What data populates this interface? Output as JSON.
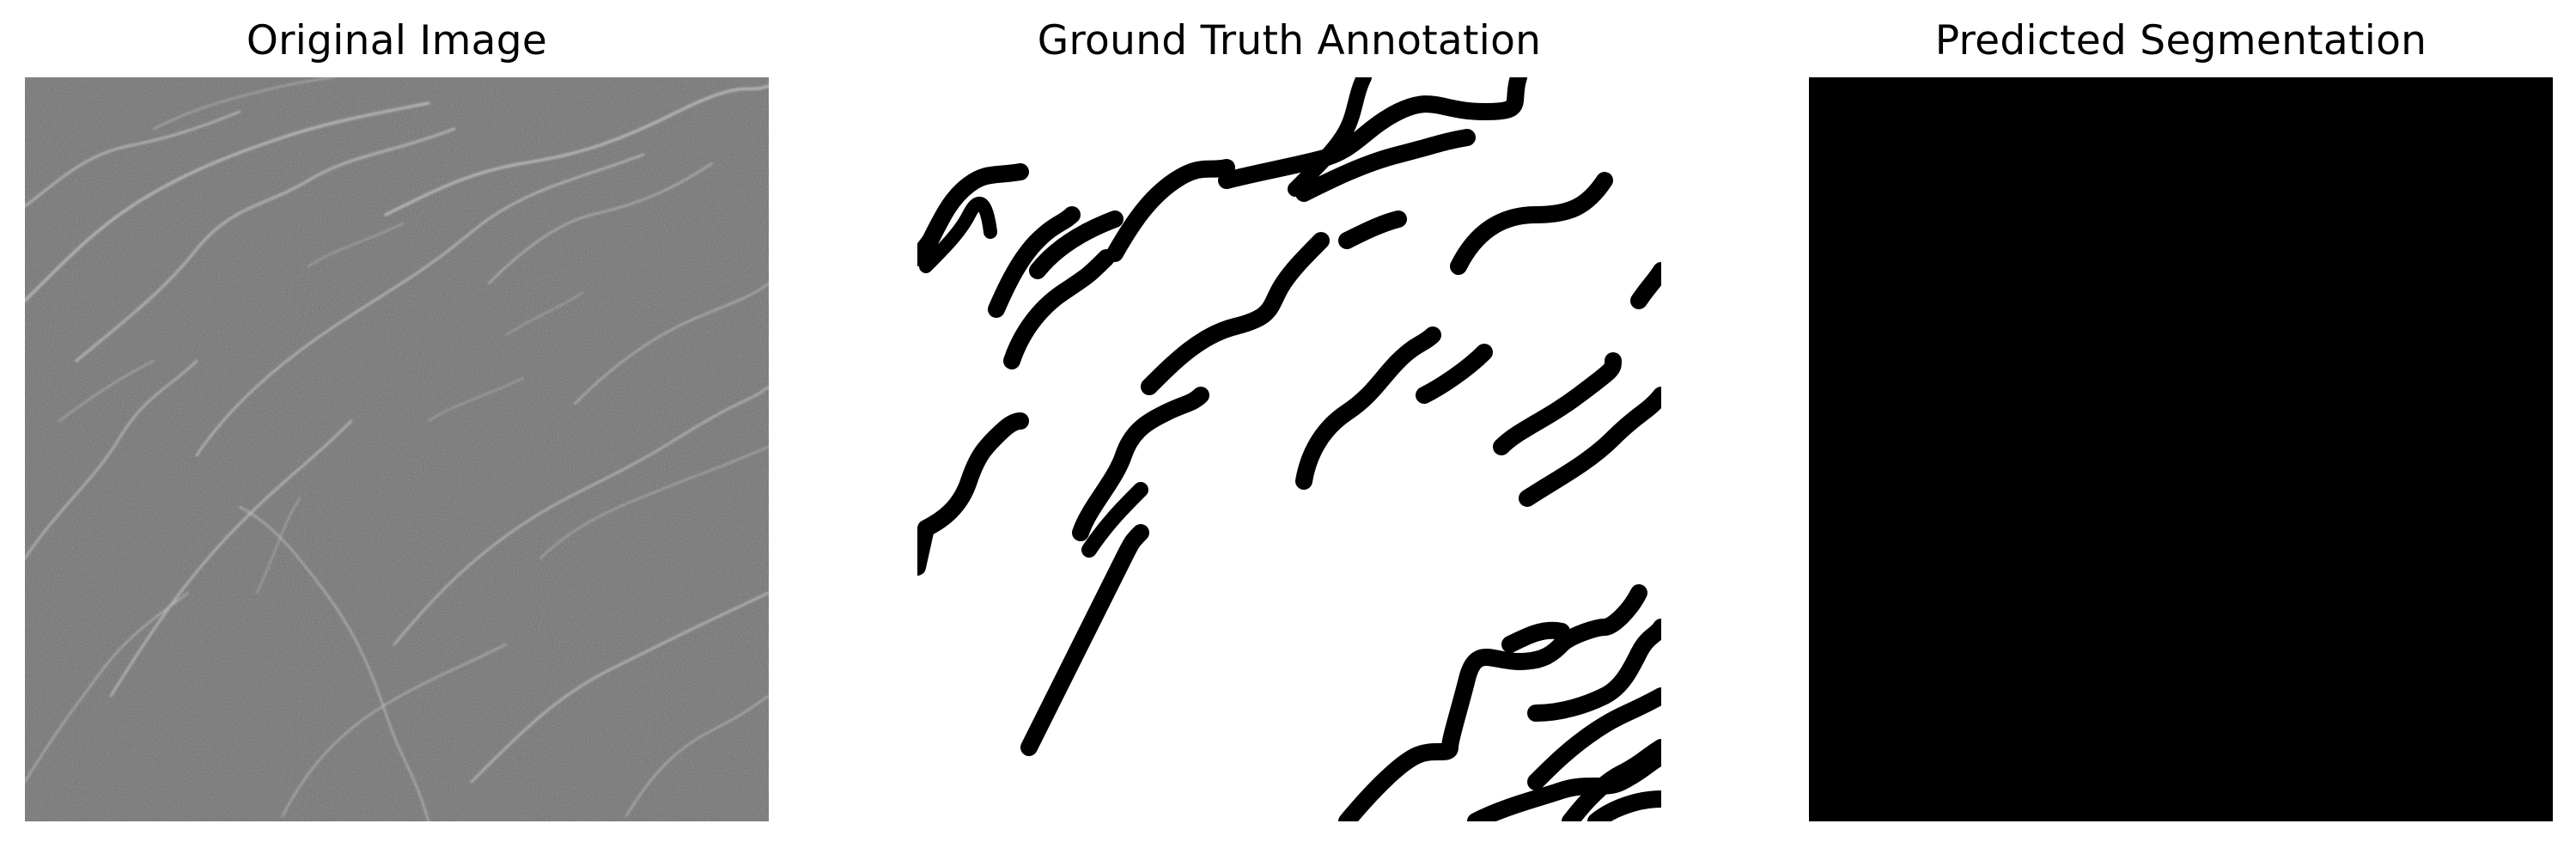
{
  "panels": [
    {
      "title": "Original Image"
    },
    {
      "title": "Ground Truth Annotation"
    },
    {
      "title": "Predicted Segmentation"
    }
  ],
  "colors": {
    "original_base": "#6a6a6a",
    "crack_highlight": "#c8c8c8",
    "annotation_background": "#ffffff",
    "annotation_stroke": "#000000",
    "prediction_fill": "#000000"
  }
}
